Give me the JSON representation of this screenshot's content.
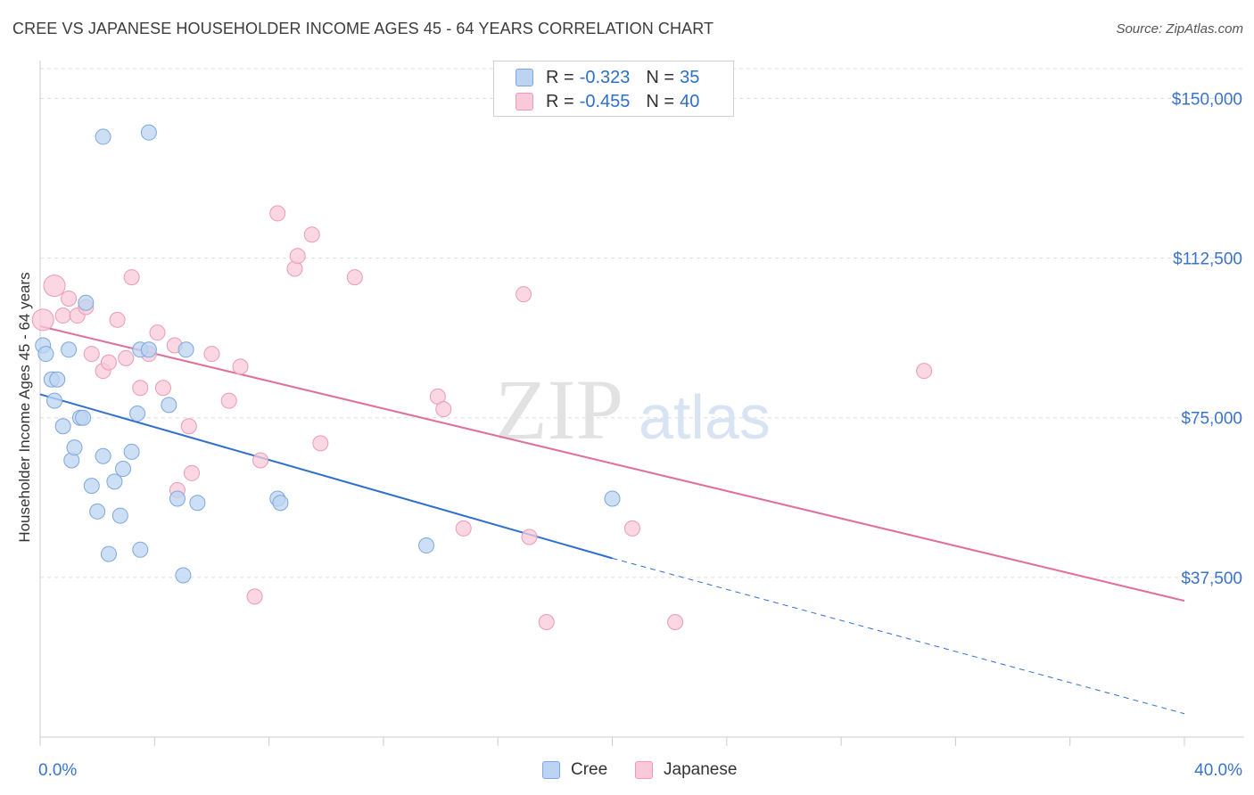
{
  "title": "CREE VS JAPANESE HOUSEHOLDER INCOME AGES 45 - 64 YEARS CORRELATION CHART",
  "source": "Source: ZipAtlas.com",
  "watermark": {
    "zip": "ZIP",
    "atlas": "atlas"
  },
  "legend": {
    "rows": [
      {
        "r_label": "R =",
        "r_value": "-0.323",
        "n_label": "N =",
        "n_value": "35"
      },
      {
        "r_label": "R =",
        "r_value": "-0.455",
        "n_label": "N =",
        "n_value": "40"
      }
    ]
  },
  "bottom_legend": [
    "Cree",
    "Japanese"
  ],
  "colors": {
    "cree_fill": "#bcd4f2",
    "cree_stroke": "#7da7dc",
    "cree_line": "#2f6fd0",
    "japanese_fill": "#f8c9d8",
    "japanese_stroke": "#ec9ab5",
    "japanese_line": "#e0709a",
    "axis_text": "#3a73cc",
    "grid": "#dddddd"
  },
  "chart_data": {
    "type": "scatter",
    "title": "CREE VS JAPANESE HOUSEHOLDER INCOME AGES 45 - 64 YEARS CORRELATION CHART",
    "xlabel": "",
    "ylabel": "Householder Income Ages 45 - 64 years",
    "xlim": [
      0,
      40
    ],
    "ylim": [
      0,
      157000
    ],
    "x_tick_labels": [
      "0.0%",
      "40.0%"
    ],
    "y_ticks": [
      37500,
      75000,
      112500,
      150000
    ],
    "y_tick_labels": [
      "$37,500",
      "$75,000",
      "$112,500",
      "$150,000"
    ],
    "grid": true,
    "series": [
      {
        "name": "Cree",
        "points": [
          [
            0.1,
            92000
          ],
          [
            0.2,
            90000
          ],
          [
            0.4,
            84000
          ],
          [
            0.6,
            84000
          ],
          [
            0.5,
            79000
          ],
          [
            0.8,
            73000
          ],
          [
            1.0,
            91000
          ],
          [
            1.1,
            65000
          ],
          [
            1.2,
            68000
          ],
          [
            1.4,
            75000
          ],
          [
            1.5,
            75000
          ],
          [
            1.6,
            102000
          ],
          [
            1.8,
            59000
          ],
          [
            2.0,
            53000
          ],
          [
            2.2,
            66000
          ],
          [
            2.4,
            43000
          ],
          [
            2.2,
            141000
          ],
          [
            2.6,
            60000
          ],
          [
            2.8,
            52000
          ],
          [
            2.9,
            63000
          ],
          [
            3.2,
            67000
          ],
          [
            3.4,
            76000
          ],
          [
            3.5,
            91000
          ],
          [
            3.5,
            44000
          ],
          [
            3.8,
            91000
          ],
          [
            3.8,
            142000
          ],
          [
            4.5,
            78000
          ],
          [
            4.8,
            56000
          ],
          [
            5.0,
            38000
          ],
          [
            5.1,
            91000
          ],
          [
            5.5,
            55000
          ],
          [
            8.3,
            56000
          ],
          [
            8.4,
            55000
          ],
          [
            13.5,
            45000
          ],
          [
            20.0,
            56000
          ]
        ],
        "trend": {
          "x": [
            0.0,
            20.0
          ],
          "y": [
            80500,
            42000
          ],
          "dashed_to": [
            40.0,
            5500
          ]
        }
      },
      {
        "name": "Japanese",
        "points": [
          [
            0.1,
            98000
          ],
          [
            0.5,
            106000
          ],
          [
            0.8,
            99000
          ],
          [
            1.0,
            103000
          ],
          [
            1.3,
            99000
          ],
          [
            1.6,
            101000
          ],
          [
            1.8,
            90000
          ],
          [
            2.2,
            86000
          ],
          [
            2.4,
            88000
          ],
          [
            2.7,
            98000
          ],
          [
            3.0,
            89000
          ],
          [
            3.2,
            108000
          ],
          [
            3.5,
            82000
          ],
          [
            3.8,
            90000
          ],
          [
            4.1,
            95000
          ],
          [
            4.3,
            82000
          ],
          [
            4.7,
            92000
          ],
          [
            4.8,
            58000
          ],
          [
            5.2,
            73000
          ],
          [
            5.3,
            62000
          ],
          [
            6.0,
            90000
          ],
          [
            6.6,
            79000
          ],
          [
            7.0,
            87000
          ],
          [
            7.5,
            33000
          ],
          [
            7.7,
            65000
          ],
          [
            8.3,
            123000
          ],
          [
            8.9,
            110000
          ],
          [
            9.0,
            113000
          ],
          [
            9.5,
            118000
          ],
          [
            9.8,
            69000
          ],
          [
            11.0,
            108000
          ],
          [
            13.9,
            80000
          ],
          [
            14.1,
            77000
          ],
          [
            14.8,
            49000
          ],
          [
            16.9,
            104000
          ],
          [
            17.1,
            47000
          ],
          [
            17.7,
            27000
          ],
          [
            20.7,
            49000
          ],
          [
            22.2,
            27000
          ],
          [
            30.9,
            86000
          ]
        ],
        "trend": {
          "x": [
            0.0,
            40.0
          ],
          "y": [
            96500,
            32000
          ]
        }
      }
    ]
  }
}
